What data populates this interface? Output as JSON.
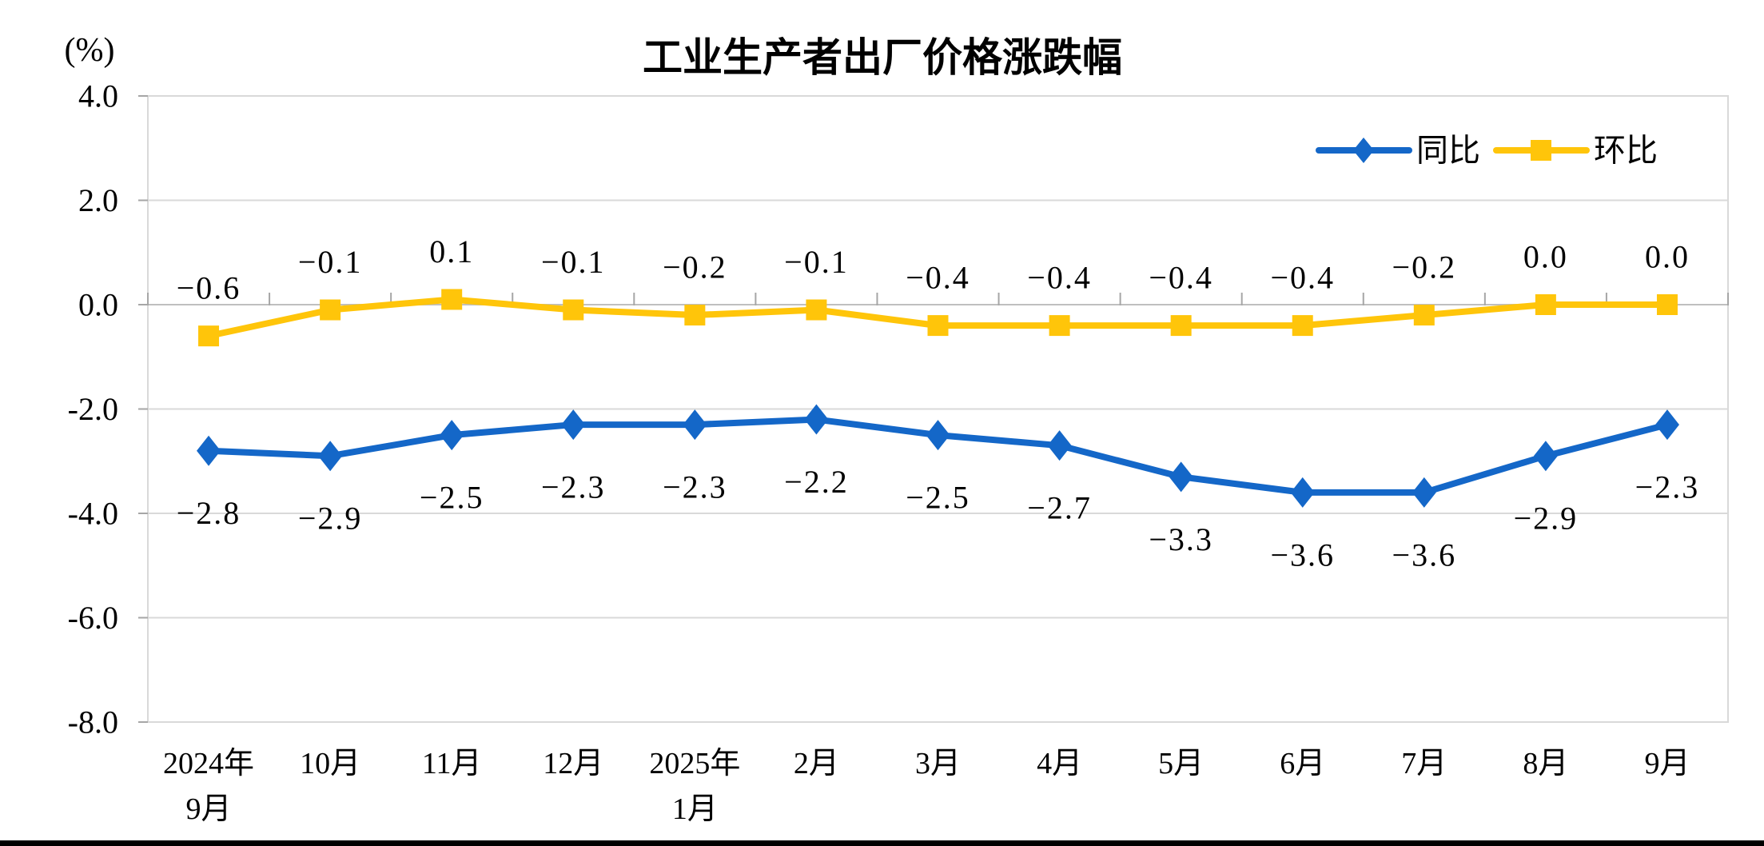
{
  "page": {
    "background_color": "#FFFFFF",
    "bottom_bar_color": "#000000"
  },
  "chart_data": {
    "type": "line",
    "title": "工业生产者出厂价格涨跌幅",
    "unit_label": "(%)",
    "grid": true,
    "legend_position": "top-right",
    "x_categories": [
      [
        "2024年",
        "9月"
      ],
      [
        "10月"
      ],
      [
        "11月"
      ],
      [
        "12月"
      ],
      [
        "2025年",
        "1月"
      ],
      [
        "2月"
      ],
      [
        "3月"
      ],
      [
        "4月"
      ],
      [
        "5月"
      ],
      [
        "6月"
      ],
      [
        "7月"
      ],
      [
        "8月"
      ],
      [
        "9月"
      ]
    ],
    "y_axis": {
      "min": -8.0,
      "max": 4.0,
      "step": 2.0,
      "tick_labels": [
        "4.0",
        "2.0",
        "0.0",
        "-2.0",
        "-4.0",
        "-6.0",
        "-8.0"
      ]
    },
    "series": [
      {
        "name": "同比",
        "color": "#1467C8",
        "marker": "diamond",
        "label_position": "below",
        "values": [
          -2.8,
          -2.9,
          -2.5,
          -2.3,
          -2.3,
          -2.2,
          -2.5,
          -2.7,
          -3.3,
          -3.6,
          -3.6,
          -2.9,
          -2.3
        ],
        "data_labels": [
          "−2.8",
          "−2.9",
          "−2.5",
          "−2.3",
          "−2.3",
          "−2.2",
          "−2.5",
          "−2.7",
          "−3.3",
          "−3.6",
          "−3.6",
          "−2.9",
          "−2.3"
        ]
      },
      {
        "name": "环比",
        "color": "#FFC50A",
        "marker": "square",
        "label_position": "above",
        "values": [
          -0.6,
          -0.1,
          0.1,
          -0.1,
          -0.2,
          -0.1,
          -0.4,
          -0.4,
          -0.4,
          -0.4,
          -0.2,
          0.0,
          0.0
        ],
        "data_labels": [
          "−0.6",
          "−0.1",
          "0.1",
          "−0.1",
          "−0.2",
          "−0.1",
          "−0.4",
          "−0.4",
          "−0.4",
          "−0.4",
          "−0.2",
          "0.0",
          "0.0"
        ]
      }
    ],
    "axis_colors": {
      "gridline": "#D9D9D9",
      "plot_border": "#D9D9D9",
      "zero_axis_line": "#BFBFBF",
      "tick_mark": "#A6A6A6",
      "text": "#000000"
    }
  }
}
